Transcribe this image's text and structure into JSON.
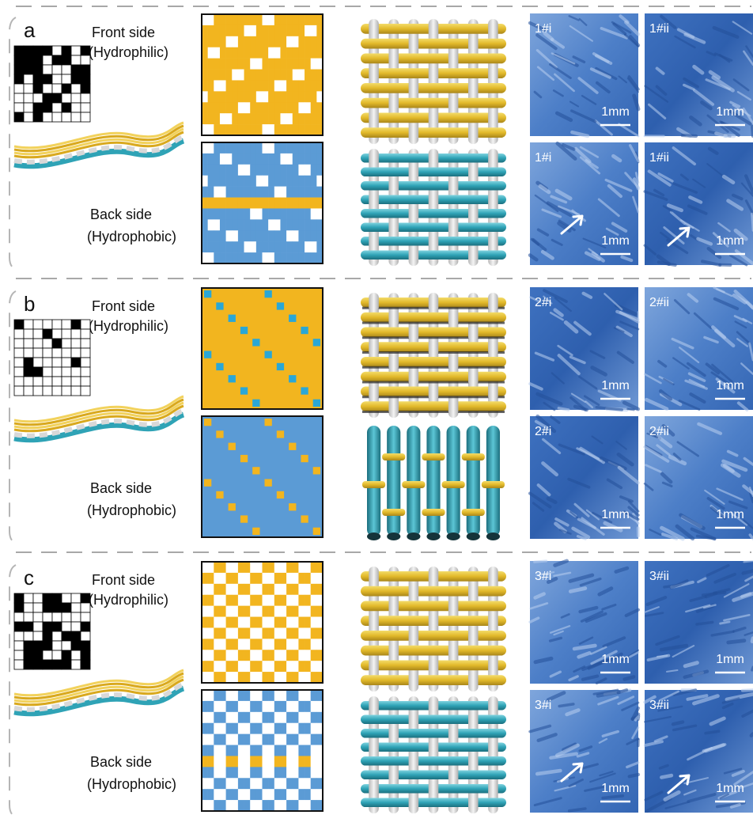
{
  "panels": [
    {
      "label": "a",
      "front": {
        "title": "Front side",
        "subtitle": "(Hydrophilic)"
      },
      "back": {
        "title": "Back side",
        "subtitle": "(Hydrophobic)"
      },
      "micrographs": [
        {
          "label": "1#i",
          "scale_bar": "1mm"
        },
        {
          "label": "1#ii",
          "scale_bar": "1mm"
        },
        {
          "label": "1#i",
          "scale_bar": "1mm"
        },
        {
          "label": "1#ii",
          "scale_bar": "1mm"
        }
      ]
    },
    {
      "label": "b",
      "front": {
        "title": "Front side",
        "subtitle": "(Hydrophilic)"
      },
      "back": {
        "title": "Back side",
        "subtitle": "(Hydrophobic)"
      },
      "micrographs": [
        {
          "label": "2#i",
          "scale_bar": "1mm"
        },
        {
          "label": "2#ii",
          "scale_bar": "1mm"
        },
        {
          "label": "2#i",
          "scale_bar": "1mm"
        },
        {
          "label": "2#ii",
          "scale_bar": "1mm"
        }
      ]
    },
    {
      "label": "c",
      "front": {
        "title": "Front side",
        "subtitle": "(Hydrophilic)"
      },
      "back": {
        "title": "Back side",
        "subtitle": "(Hydrophobic)"
      },
      "micrographs": [
        {
          "label": "3#i",
          "scale_bar": "1mm"
        },
        {
          "label": "3#ii",
          "scale_bar": "1mm"
        },
        {
          "label": "3#i",
          "scale_bar": "1mm"
        },
        {
          "label": "3#ii",
          "scale_bar": "1mm"
        }
      ]
    }
  ]
}
